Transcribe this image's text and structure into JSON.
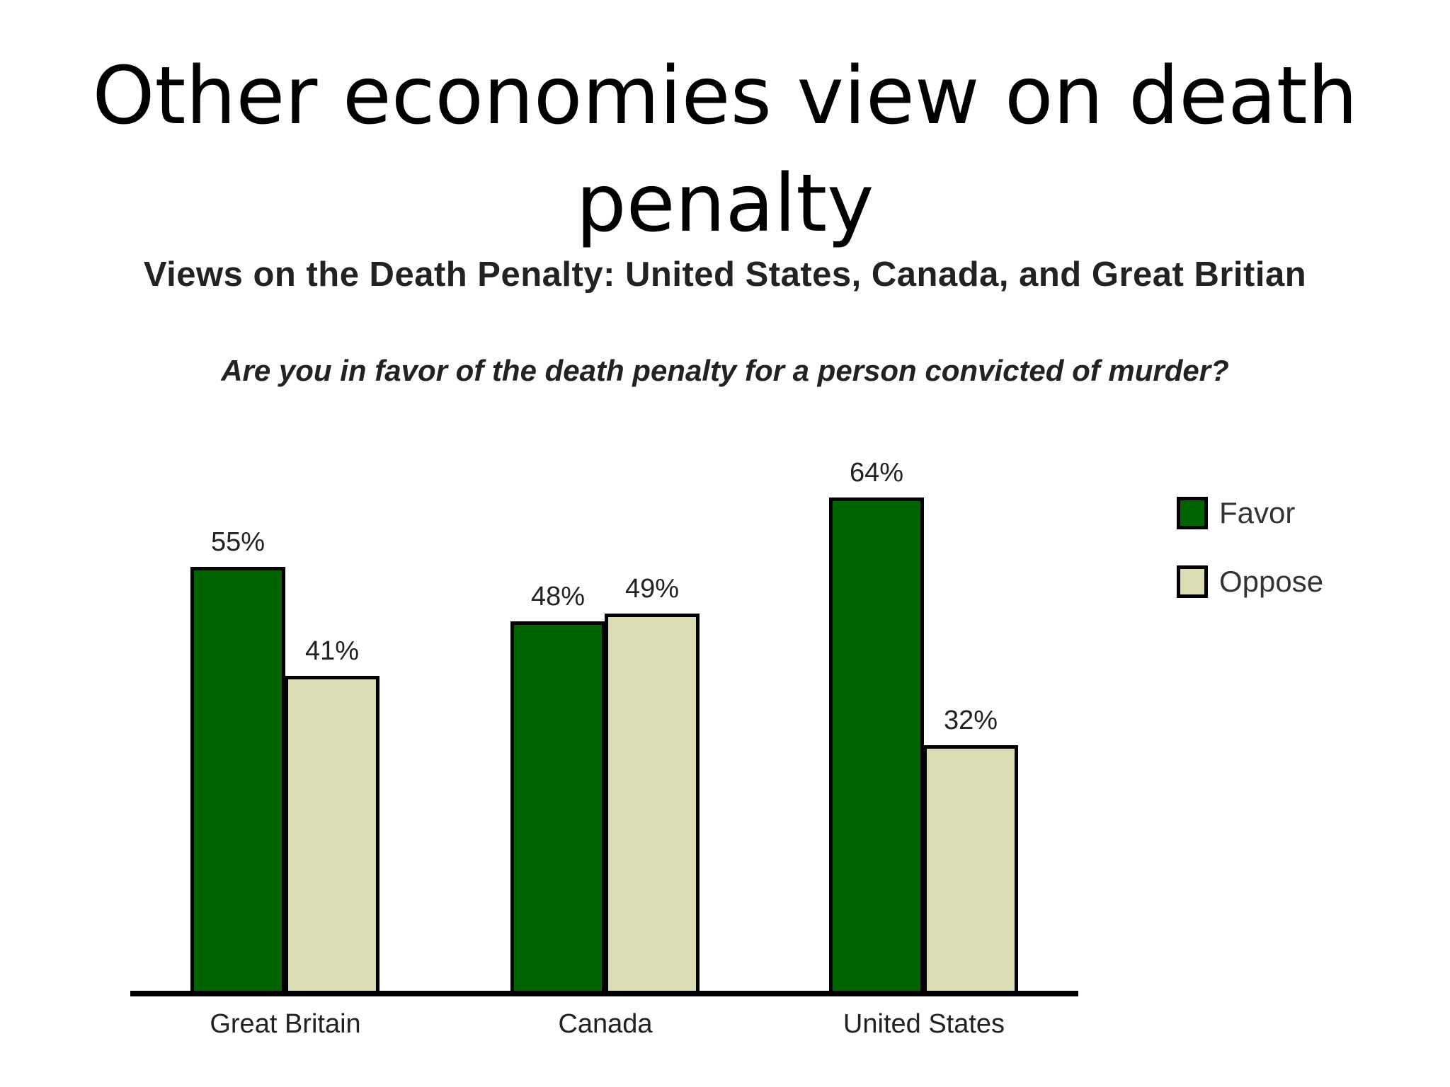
{
  "slide": {
    "title": "Other economies view on death penalty"
  },
  "chart_data": {
    "type": "bar",
    "title": "Views on the Death Penalty: United States, Canada, and Great Britian",
    "subtitle": "Are you in favor of the death penalty for a person convicted of murder?",
    "categories": [
      "Great Britain",
      "Canada",
      "United States"
    ],
    "series": [
      {
        "name": "Favor",
        "color": "#006400",
        "values": [
          55,
          48,
          64
        ],
        "labels": [
          "55%",
          "48%",
          "64%"
        ]
      },
      {
        "name": "Oppose",
        "color": "#dcdcb4",
        "values": [
          41,
          49,
          32
        ],
        "labels": [
          "41%",
          "49%",
          "32%"
        ]
      }
    ],
    "xlabel": "",
    "ylabel": "",
    "ylim": [
      0,
      100
    ],
    "grid": false,
    "legend_position": "right"
  }
}
